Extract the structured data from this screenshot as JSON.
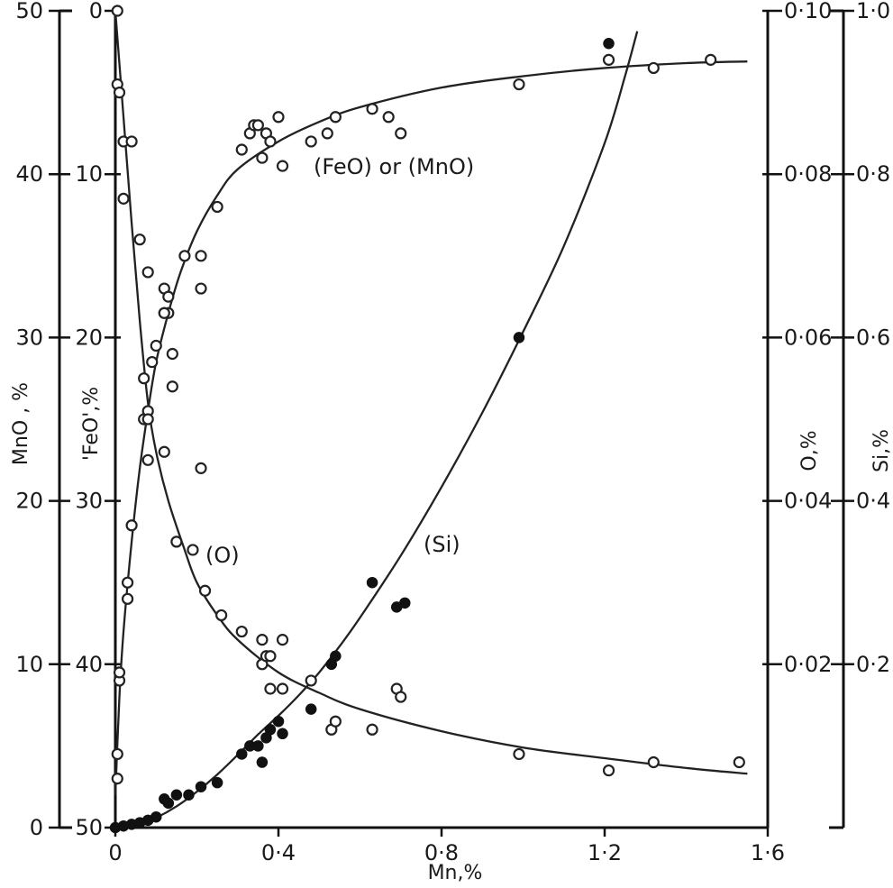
{
  "chart_data": {
    "type": "scatter",
    "xlabel": "Mn,%",
    "xlim": [
      0,
      1.6
    ],
    "x_ticks": [
      "0",
      "0·4",
      "0·8",
      "1·2",
      "1·6"
    ],
    "y_axes": [
      {
        "id": "mno",
        "label": "MnO , %",
        "range": [
          0,
          50
        ],
        "ticks": [
          "0",
          "10",
          "20",
          "30",
          "40",
          "50"
        ]
      },
      {
        "id": "feo",
        "label": "'FeO',%",
        "range": [
          50,
          0
        ],
        "ticks": [
          "50",
          "40",
          "30",
          "20",
          "10",
          "0"
        ]
      },
      {
        "id": "o",
        "label": "O,%",
        "range": [
          0,
          0.1
        ],
        "ticks": [
          "0·02",
          "0·04",
          "0·06",
          "0·08",
          "0·10"
        ]
      },
      {
        "id": "si",
        "label": "Si,%",
        "range": [
          0,
          1.0
        ],
        "ticks": [
          "0·2",
          "0·4",
          "0·6",
          "0·8",
          "1·0"
        ]
      }
    ],
    "annotations": [
      "(FeO) or (MnO)",
      "(O)",
      "(Si)"
    ],
    "series": [
      {
        "name": "(FeO) or (MnO)",
        "axis": "mno",
        "marker": "open",
        "points": [
          [
            0.005,
            4.5
          ],
          [
            0.005,
            3.0
          ],
          [
            0.01,
            9.0
          ],
          [
            0.01,
            9.5
          ],
          [
            0.03,
            14.0
          ],
          [
            0.03,
            15.0
          ],
          [
            0.04,
            18.5
          ],
          [
            0.07,
            25.0
          ],
          [
            0.08,
            25.5
          ],
          [
            0.09,
            28.5
          ],
          [
            0.1,
            29.5
          ],
          [
            0.12,
            31.5
          ],
          [
            0.12,
            33.0
          ],
          [
            0.13,
            31.5
          ],
          [
            0.14,
            27.0
          ],
          [
            0.17,
            35.0
          ],
          [
            0.21,
            35.0
          ],
          [
            0.21,
            33.0
          ],
          [
            0.25,
            38.0
          ],
          [
            0.31,
            41.5
          ],
          [
            0.33,
            42.5
          ],
          [
            0.34,
            43.0
          ],
          [
            0.35,
            43.0
          ],
          [
            0.36,
            41.0
          ],
          [
            0.37,
            42.5
          ],
          [
            0.38,
            42.0
          ],
          [
            0.41,
            40.5
          ],
          [
            0.4,
            43.5
          ],
          [
            0.48,
            42.0
          ],
          [
            0.52,
            42.5
          ],
          [
            0.54,
            43.5
          ],
          [
            0.63,
            44.0
          ],
          [
            0.67,
            43.5
          ],
          [
            0.7,
            42.5
          ],
          [
            0.99,
            45.5
          ],
          [
            1.21,
            47.0
          ],
          [
            1.32,
            46.5
          ],
          [
            1.46,
            47.0
          ]
        ],
        "curve": [
          [
            0.0,
            2.0
          ],
          [
            0.01,
            8.0
          ],
          [
            0.02,
            12.0
          ],
          [
            0.04,
            17.5
          ],
          [
            0.06,
            22.0
          ],
          [
            0.08,
            25.5
          ],
          [
            0.1,
            28.5
          ],
          [
            0.13,
            31.5
          ],
          [
            0.16,
            34.0
          ],
          [
            0.2,
            36.5
          ],
          [
            0.25,
            38.7
          ],
          [
            0.3,
            40.3
          ],
          [
            0.4,
            42.0
          ],
          [
            0.5,
            43.2
          ],
          [
            0.6,
            44.1
          ],
          [
            0.8,
            45.3
          ],
          [
            1.0,
            46.0
          ],
          [
            1.2,
            46.5
          ],
          [
            1.4,
            46.8
          ],
          [
            1.55,
            46.9
          ]
        ]
      },
      {
        "name": "(O)",
        "axis": "o",
        "marker": "open",
        "points": [
          [
            0.005,
            0.1
          ],
          [
            0.005,
            0.091
          ],
          [
            0.01,
            0.09
          ],
          [
            0.02,
            0.084
          ],
          [
            0.02,
            0.077
          ],
          [
            0.04,
            0.084
          ],
          [
            0.06,
            0.072
          ],
          [
            0.08,
            0.068
          ],
          [
            0.07,
            0.055
          ],
          [
            0.08,
            0.05
          ],
          [
            0.08,
            0.045
          ],
          [
            0.12,
            0.063
          ],
          [
            0.12,
            0.046
          ],
          [
            0.13,
            0.065
          ],
          [
            0.14,
            0.058
          ],
          [
            0.15,
            0.035
          ],
          [
            0.19,
            0.034
          ],
          [
            0.21,
            0.044
          ],
          [
            0.22,
            0.029
          ],
          [
            0.26,
            0.026
          ],
          [
            0.31,
            0.024
          ],
          [
            0.36,
            0.023
          ],
          [
            0.36,
            0.02
          ],
          [
            0.37,
            0.021
          ],
          [
            0.38,
            0.017
          ],
          [
            0.38,
            0.021
          ],
          [
            0.41,
            0.023
          ],
          [
            0.41,
            0.017
          ],
          [
            0.48,
            0.018
          ],
          [
            0.53,
            0.012
          ],
          [
            0.54,
            0.013
          ],
          [
            0.63,
            0.012
          ],
          [
            0.69,
            0.017
          ],
          [
            0.7,
            0.016
          ],
          [
            0.99,
            0.009
          ],
          [
            1.21,
            0.007
          ],
          [
            1.32,
            0.008
          ],
          [
            1.53,
            0.008
          ]
        ],
        "curve": [
          [
            0.0,
            0.1
          ],
          [
            0.02,
            0.087
          ],
          [
            0.04,
            0.074
          ],
          [
            0.06,
            0.062
          ],
          [
            0.08,
            0.052
          ],
          [
            0.1,
            0.046
          ],
          [
            0.13,
            0.04
          ],
          [
            0.17,
            0.034
          ],
          [
            0.2,
            0.03
          ],
          [
            0.25,
            0.026
          ],
          [
            0.3,
            0.023
          ],
          [
            0.4,
            0.019
          ],
          [
            0.5,
            0.0165
          ],
          [
            0.6,
            0.0145
          ],
          [
            0.8,
            0.0118
          ],
          [
            1.0,
            0.0098
          ],
          [
            1.2,
            0.0085
          ],
          [
            1.4,
            0.0073
          ],
          [
            1.55,
            0.0066
          ]
        ]
      },
      {
        "name": "(Si)",
        "axis": "si",
        "marker": "filled",
        "points": [
          [
            0.0,
            0.0
          ],
          [
            0.02,
            0.002
          ],
          [
            0.04,
            0.004
          ],
          [
            0.06,
            0.006
          ],
          [
            0.08,
            0.009
          ],
          [
            0.1,
            0.013
          ],
          [
            0.12,
            0.035
          ],
          [
            0.13,
            0.03
          ],
          [
            0.15,
            0.04
          ],
          [
            0.18,
            0.04
          ],
          [
            0.21,
            0.05
          ],
          [
            0.25,
            0.055
          ],
          [
            0.31,
            0.09
          ],
          [
            0.33,
            0.1
          ],
          [
            0.35,
            0.1
          ],
          [
            0.36,
            0.08
          ],
          [
            0.37,
            0.11
          ],
          [
            0.38,
            0.12
          ],
          [
            0.4,
            0.13
          ],
          [
            0.41,
            0.115
          ],
          [
            0.48,
            0.145
          ],
          [
            0.53,
            0.2
          ],
          [
            0.54,
            0.21
          ],
          [
            0.63,
            0.3
          ],
          [
            0.69,
            0.27
          ],
          [
            0.71,
            0.275
          ],
          [
            0.99,
            0.6
          ],
          [
            1.21,
            0.96
          ]
        ],
        "curve": [
          [
            0.0,
            0.0
          ],
          [
            0.05,
            0.002
          ],
          [
            0.1,
            0.012
          ],
          [
            0.15,
            0.026
          ],
          [
            0.2,
            0.044
          ],
          [
            0.25,
            0.065
          ],
          [
            0.3,
            0.089
          ],
          [
            0.35,
            0.114
          ],
          [
            0.4,
            0.137
          ],
          [
            0.45,
            0.162
          ],
          [
            0.5,
            0.19
          ],
          [
            0.55,
            0.222
          ],
          [
            0.6,
            0.257
          ],
          [
            0.7,
            0.333
          ],
          [
            0.8,
            0.417
          ],
          [
            0.9,
            0.508
          ],
          [
            1.0,
            0.607
          ],
          [
            1.1,
            0.712
          ],
          [
            1.2,
            0.838
          ],
          [
            1.25,
            0.92
          ],
          [
            1.28,
            0.975
          ]
        ]
      }
    ]
  }
}
